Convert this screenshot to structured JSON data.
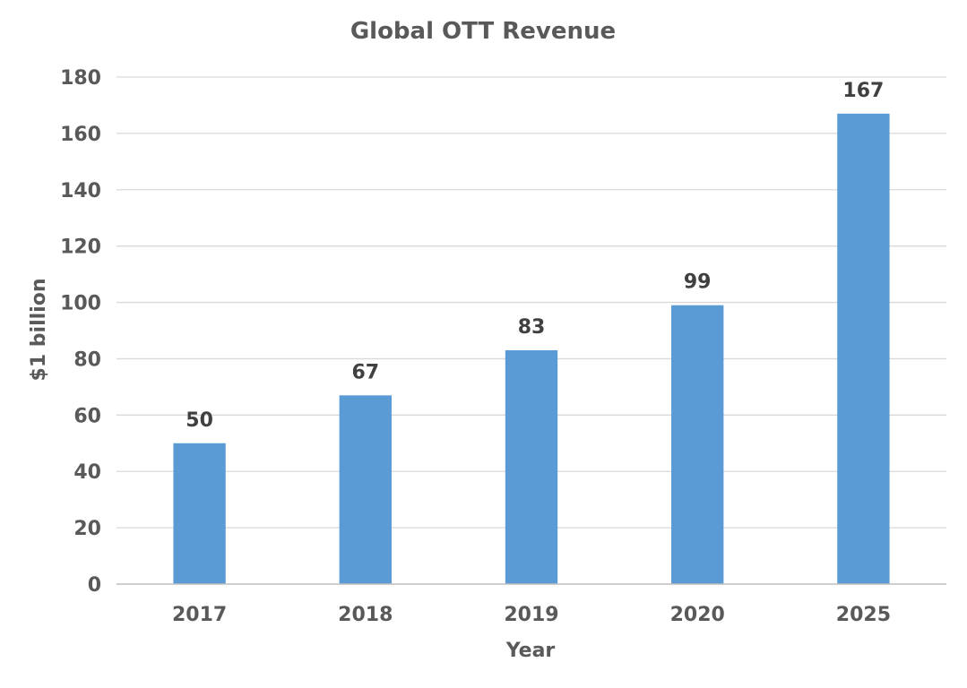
{
  "chart_data": {
    "type": "bar",
    "title": "Global OTT Revenue",
    "xlabel": "Year",
    "ylabel": "$1 billion",
    "categories": [
      "2017",
      "2018",
      "2019",
      "2020",
      "2025"
    ],
    "values": [
      50,
      67,
      83,
      99,
      167
    ],
    "data_labels": [
      "50",
      "67",
      "83",
      "99",
      "167"
    ],
    "ylim": [
      0,
      180
    ],
    "yticks": [
      0,
      20,
      40,
      60,
      80,
      100,
      120,
      140,
      160,
      180
    ],
    "grid": true,
    "legend": "none",
    "bar_color": "#5b9bd5"
  }
}
